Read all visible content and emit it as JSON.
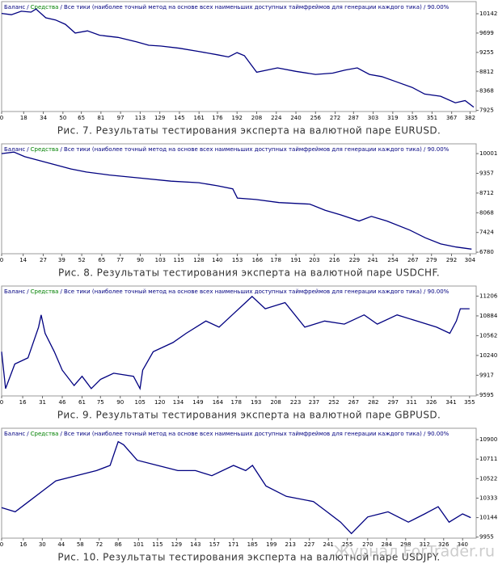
{
  "chart_data": [
    {
      "type": "line",
      "title": "Рис. 7. Результаты тестирования эксперта на валютной паре EURUSD.",
      "separator": "/",
      "equity_label": "Средства",
      "equity_color": "#008000",
      "header_text": "/ Все тики (наиболее точный метод на основе всех наименьших доступных таймфреймов для генерации каждого тика) / 90.00%",
      "x": [
        0,
        8,
        16,
        24,
        28,
        36,
        44,
        52,
        60,
        70,
        80,
        95,
        110,
        120,
        130,
        145,
        160,
        176,
        185,
        192,
        198,
        208,
        225,
        240,
        256,
        270,
        280,
        290,
        300,
        310,
        320,
        335,
        345,
        358,
        370,
        378,
        385
      ],
      "series": [
        {
          "name": "Баланс",
          "color": "#000080",
          "values": [
            10150,
            10120,
            10200,
            10180,
            10250,
            10050,
            10000,
            9900,
            9700,
            9750,
            9650,
            9600,
            9500,
            9420,
            9400,
            9350,
            9280,
            9200,
            9150,
            9250,
            9180,
            8800,
            8900,
            8820,
            8750,
            8780,
            8850,
            8900,
            8750,
            8700,
            8600,
            8450,
            8300,
            8250,
            8100,
            8150,
            8000
          ]
        }
      ],
      "xlim": [
        0,
        387
      ],
      "ylim": [
        7900,
        10420
      ],
      "xticks": [
        0,
        18,
        34,
        50,
        65,
        81,
        97,
        113,
        129,
        145,
        161,
        176,
        192,
        208,
        224,
        240,
        256,
        272,
        287,
        303,
        319,
        335,
        351,
        367,
        382
      ],
      "yticks": [
        10142,
        9699,
        9255,
        8812,
        8368,
        7925
      ]
    },
    {
      "type": "line",
      "title": "Рис. 8. Результаты тестирования эксперта на валютной паре USDCHF.",
      "separator": "/",
      "equity_label": "Средства",
      "equity_color": "#008000",
      "header_text": "/ Все тики (наиболее точный метод на основе всех наименьших доступных таймфреймов для генерации каждого тика) / 90.00%",
      "x": [
        0,
        8,
        15,
        30,
        45,
        55,
        70,
        90,
        110,
        128,
        140,
        150,
        153,
        165,
        180,
        200,
        210,
        220,
        232,
        240,
        250,
        265,
        275,
        285,
        295,
        305
      ],
      "series": [
        {
          "name": "Баланс",
          "color": "#000080",
          "values": [
            10001,
            10050,
            9900,
            9700,
            9500,
            9400,
            9300,
            9200,
            9100,
            9050,
            8950,
            8850,
            8550,
            8500,
            8400,
            8350,
            8150,
            8000,
            7800,
            7950,
            7800,
            7500,
            7250,
            7050,
            6950,
            6880
          ]
        }
      ],
      "xlim": [
        0,
        308
      ],
      "ylim": [
        6730,
        10320
      ],
      "xticks": [
        0,
        14,
        27,
        39,
        52,
        65,
        77,
        90,
        103,
        115,
        128,
        140,
        153,
        166,
        178,
        191,
        203,
        216,
        229,
        241,
        254,
        267,
        279,
        292,
        304
      ],
      "yticks": [
        10001,
        9357,
        8712,
        8068,
        7424,
        6780
      ]
    },
    {
      "type": "line",
      "title": "Рис. 9. Результаты тестирования эксперта на валютной паре GBPUSD.",
      "separator": "/",
      "equity_label": "Средства",
      "equity_color": "#008000",
      "header_text": "/ Все тики (наиболее точный метод на основе всех наименьших доступных таймфреймов для генерации каждого тика) / 90.00%",
      "x": [
        0,
        3,
        10,
        20,
        28,
        30,
        33,
        40,
        46,
        55,
        61,
        68,
        75,
        85,
        100,
        105,
        107,
        115,
        130,
        140,
        155,
        165,
        175,
        185,
        190,
        200,
        215,
        230,
        245,
        260,
        275,
        285,
        300,
        315,
        330,
        340,
        345,
        348,
        355
      ],
      "series": [
        {
          "name": "Баланс",
          "color": "#000080",
          "values": [
            10300,
            9700,
            10100,
            10200,
            10700,
            10900,
            10600,
            10300,
            10000,
            9750,
            9900,
            9700,
            9850,
            9950,
            9900,
            9700,
            10000,
            10300,
            10450,
            10600,
            10800,
            10700,
            10900,
            11100,
            11200,
            11000,
            11100,
            10700,
            10800,
            10750,
            10900,
            10750,
            10900,
            10800,
            10700,
            10600,
            10800,
            11000,
            11000
          ]
        }
      ],
      "xlim": [
        0,
        360
      ],
      "ylim": [
        9580,
        11370
      ],
      "xticks": [
        0,
        16,
        31,
        46,
        61,
        75,
        90,
        105,
        120,
        134,
        149,
        164,
        178,
        193,
        208,
        223,
        237,
        252,
        267,
        282,
        297,
        311,
        326,
        341,
        355
      ],
      "yticks": [
        11206,
        10884,
        10562,
        10240,
        9917,
        9595
      ]
    },
    {
      "type": "line",
      "title": "Рис. 10. Результаты тестирования эксперта на валютной паре USDJPY.",
      "separator": "/",
      "equity_label": "Средства",
      "equity_color": "#008000",
      "header_text": "/ Все тики (наиболее точный метод на основе всех наименьших доступных таймфреймов для генерации каждого тика) / 90.00%",
      "x": [
        0,
        10,
        20,
        30,
        40,
        55,
        70,
        80,
        86,
        90,
        100,
        115,
        130,
        143,
        155,
        171,
        180,
        185,
        195,
        210,
        230,
        240,
        250,
        258,
        270,
        285,
        300,
        312,
        322,
        330,
        340,
        346
      ],
      "series": [
        {
          "name": "Баланс",
          "color": "#000080",
          "values": [
            10240,
            10200,
            10300,
            10400,
            10500,
            10550,
            10600,
            10650,
            10880,
            10850,
            10700,
            10650,
            10600,
            10600,
            10550,
            10650,
            10600,
            10650,
            10450,
            10350,
            10300,
            10200,
            10100,
            9990,
            10150,
            10200,
            10100,
            10180,
            10250,
            10100,
            10180,
            10144
          ]
        }
      ],
      "xlim": [
        0,
        350
      ],
      "ylim": [
        9945,
        11010
      ],
      "xticks": [
        0,
        16,
        30,
        44,
        58,
        72,
        86,
        101,
        115,
        129,
        143,
        157,
        171,
        185,
        199,
        213,
        227,
        241,
        255,
        270,
        284,
        298,
        312,
        326,
        340
      ],
      "yticks": [
        10900,
        10711,
        10522,
        10333,
        10144,
        9955
      ]
    }
  ],
  "watermark": "Журнал ForTrader.ru"
}
